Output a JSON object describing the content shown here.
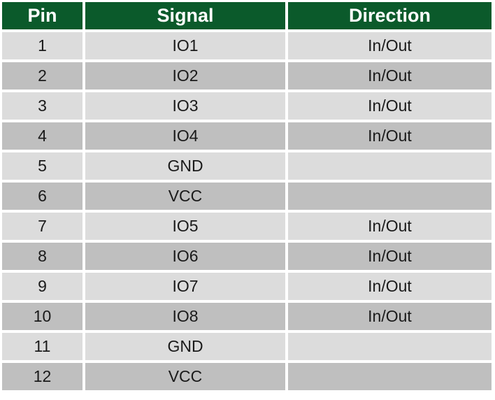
{
  "headers": {
    "pin": "Pin",
    "signal": "Signal",
    "direction": "Direction"
  },
  "rows": [
    {
      "pin": "1",
      "signal": "IO1",
      "direction": "In/Out"
    },
    {
      "pin": "2",
      "signal": "IO2",
      "direction": "In/Out"
    },
    {
      "pin": "3",
      "signal": "IO3",
      "direction": "In/Out"
    },
    {
      "pin": "4",
      "signal": "IO4",
      "direction": "In/Out"
    },
    {
      "pin": "5",
      "signal": "GND",
      "direction": ""
    },
    {
      "pin": "6",
      "signal": "VCC",
      "direction": ""
    },
    {
      "pin": "7",
      "signal": "IO5",
      "direction": "In/Out"
    },
    {
      "pin": "8",
      "signal": "IO6",
      "direction": "In/Out"
    },
    {
      "pin": "9",
      "signal": "IO7",
      "direction": "In/Out"
    },
    {
      "pin": "10",
      "signal": "IO8",
      "direction": "In/Out"
    },
    {
      "pin": "11",
      "signal": "GND",
      "direction": ""
    },
    {
      "pin": "12",
      "signal": "VCC",
      "direction": ""
    }
  ],
  "colors": {
    "header_background": "#0b5a2b",
    "header_text": "#ffffff",
    "row_light": "#dcdcdc",
    "row_dark": "#bfbfbf"
  }
}
